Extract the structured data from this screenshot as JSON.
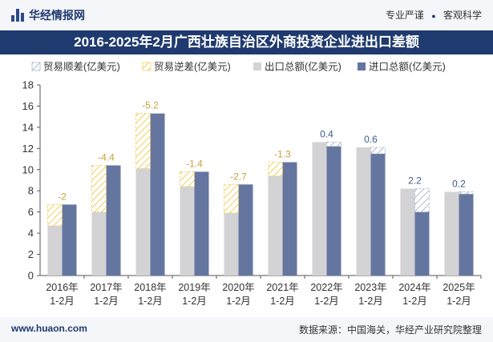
{
  "header": {
    "brand": "华经情报网",
    "tag_left": "专业严谨",
    "tag_right": "客观科学",
    "separator": "●"
  },
  "footer": {
    "website": "www.huaon.com",
    "source": "数据来源：中国海关，华经产业研究院整理"
  },
  "colors": {
    "export": "#d3d3d6",
    "import": "#6476a0",
    "surplus_stripe": "#a9b7cc",
    "deficit_stripe": "#f3cf5b",
    "label": "#c8a13a",
    "label_surplus": "#3c5a8a",
    "header_bg": "#1f3a6e"
  },
  "chart_data": {
    "type": "bar",
    "title": "2016-2025年2月广西壮族自治区外商投资企业进出口差额",
    "categories": [
      [
        "2016年",
        "1-2月"
      ],
      [
        "2017年",
        "1-2月"
      ],
      [
        "2018年",
        "1-2月"
      ],
      [
        "2019年",
        "1-2月"
      ],
      [
        "2020年",
        "1-2月"
      ],
      [
        "2021年",
        "1-2月"
      ],
      [
        "2022年",
        "1-2月"
      ],
      [
        "2023年",
        "1-2月"
      ],
      [
        "2024年",
        "1-2月"
      ],
      [
        "2025年",
        "1-2月"
      ]
    ],
    "legend": [
      "贸易顺差(亿美元)",
      "贸易逆差(亿美元)",
      "出口总额(亿美元)",
      "进口总额(亿美元)"
    ],
    "series": [
      {
        "name": "出口总额(亿美元)",
        "values": [
          4.7,
          6.0,
          10.1,
          8.4,
          5.9,
          9.4,
          12.6,
          12.1,
          8.2,
          7.9
        ]
      },
      {
        "name": "进口总额(亿美元)",
        "values": [
          6.7,
          10.4,
          15.3,
          9.8,
          8.6,
          10.7,
          12.2,
          11.5,
          6.0,
          7.7
        ]
      }
    ],
    "balance": [
      -2,
      -4.4,
      -5.2,
      -1.4,
      -2.7,
      -1.3,
      0.4,
      0.6,
      2.2,
      0.2
    ],
    "balance_labels": [
      "-2",
      "-4.4",
      "-5.2",
      "-1.4",
      "-2.7",
      "-1.3",
      "0.4",
      "0.6",
      "2.2",
      "0.2"
    ],
    "yticks": [
      "0",
      "2",
      "4",
      "6",
      "8",
      "10",
      "12",
      "14",
      "16",
      "18"
    ],
    "ylim": [
      0,
      18
    ],
    "legend_position": "top-left",
    "grid": false
  }
}
